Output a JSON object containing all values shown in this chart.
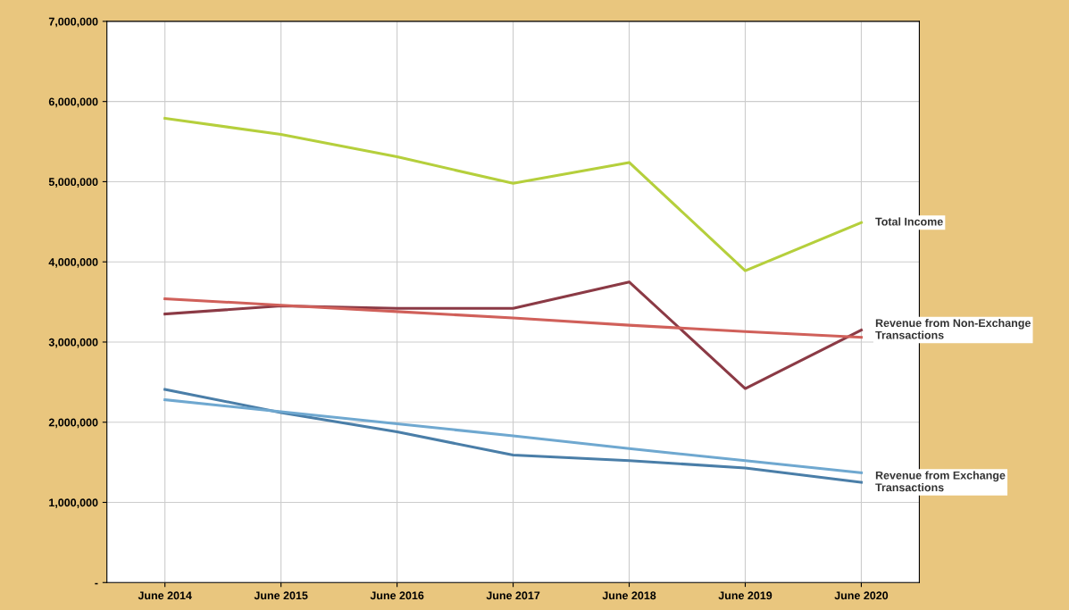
{
  "chart_data": {
    "type": "line",
    "categories": [
      "June 2014",
      "June 2015",
      "June 2016",
      "June 2017",
      "June 2018",
      "June 2019",
      "June 2020"
    ],
    "series": [
      {
        "name": "Total Income",
        "color": "#b5cf3c",
        "values": [
          5790000,
          5590000,
          5310000,
          4980000,
          5240000,
          3890000,
          4490000
        ]
      },
      {
        "name": "Revenue from Non-Exchange Transactions",
        "color": "#8b3a45",
        "values": [
          3350000,
          3450000,
          3420000,
          3420000,
          3750000,
          2420000,
          3150000
        ]
      },
      {
        "color": "#d0605a",
        "values": [
          3540000,
          3460000,
          3380000,
          3300000,
          3210000,
          3130000,
          3060000
        ]
      },
      {
        "name": "Revenue from Exchange Transactions",
        "color": "#4a7ea8",
        "values": [
          2410000,
          2120000,
          1880000,
          1590000,
          1520000,
          1430000,
          1250000
        ]
      },
      {
        "color": "#6fa8d0",
        "values": [
          2280000,
          2130000,
          1980000,
          1830000,
          1670000,
          1520000,
          1370000
        ]
      }
    ],
    "ylim": [
      0,
      7000000
    ],
    "yticks": [
      {
        "value": 0,
        "label": "-"
      },
      {
        "value": 1000000,
        "label": "1,000,000"
      },
      {
        "value": 2000000,
        "label": "2,000,000"
      },
      {
        "value": 3000000,
        "label": "3,000,000"
      },
      {
        "value": 4000000,
        "label": "4,000,000"
      },
      {
        "value": 5000000,
        "label": "5,000,000"
      },
      {
        "value": 6000000,
        "label": "6,000,000"
      },
      {
        "value": 7000000,
        "label": "7,000,000"
      }
    ],
    "grid": true,
    "legend": false,
    "marker": "none",
    "line_style": "solid"
  }
}
